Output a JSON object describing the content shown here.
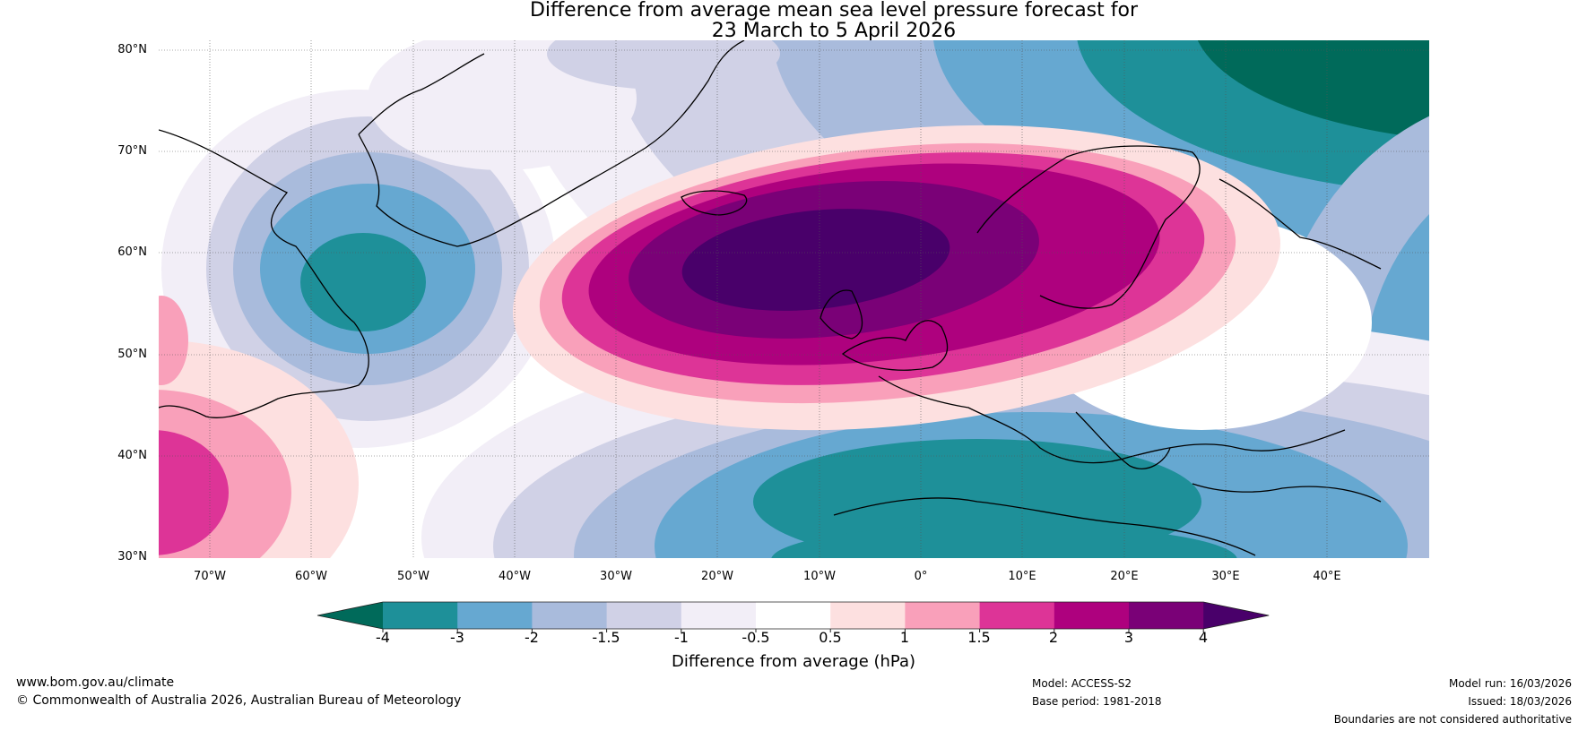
{
  "title": {
    "line1": "Difference from average mean sea level pressure forecast for",
    "line2": "23 March to 5 April 2026"
  },
  "map": {
    "lat_labels": [
      "80°N",
      "70°N",
      "60°N",
      "50°N",
      "40°N",
      "30°N"
    ],
    "lon_labels": [
      "70°W",
      "60°W",
      "50°W",
      "40°W",
      "30°W",
      "20°W",
      "10°W",
      "0°",
      "10°E",
      "20°E",
      "30°E",
      "40°E"
    ],
    "features": [
      "positive-anomaly-north-atlantic",
      "negative-anomaly-labrador-sea",
      "negative-anomaly-mediterranean",
      "negative-anomaly-arctic-russia",
      "positive-anomaly-east-us-coast"
    ]
  },
  "colorbar": {
    "label": "Difference from average (hPa)",
    "ticks": [
      "-4",
      "-3",
      "-2",
      "-1.5",
      "-1",
      "-0.5",
      "0.5",
      "1",
      "1.5",
      "2",
      "3",
      "4"
    ],
    "colors": [
      "#006a5a",
      "#1e9099",
      "#66a8d1",
      "#a9bbdc",
      "#d0d1e6",
      "#f2eef7",
      "#ffffff",
      "#fde0e0",
      "#f9a0ba",
      "#dd3497",
      "#ae017e",
      "#7a0177",
      "#49006a"
    ]
  },
  "footer": {
    "website": "www.bom.gov.au/climate",
    "copyright": "© Commonwealth of Australia 2026, Australian Bureau of Meteorology",
    "model": "Model: ACCESS-S2",
    "base_period": "Base period: 1981-2018",
    "model_run": "Model run: 16/03/2026",
    "issued": "Issued: 18/03/2026",
    "disclaimer": "Boundaries are not considered authoritative"
  }
}
